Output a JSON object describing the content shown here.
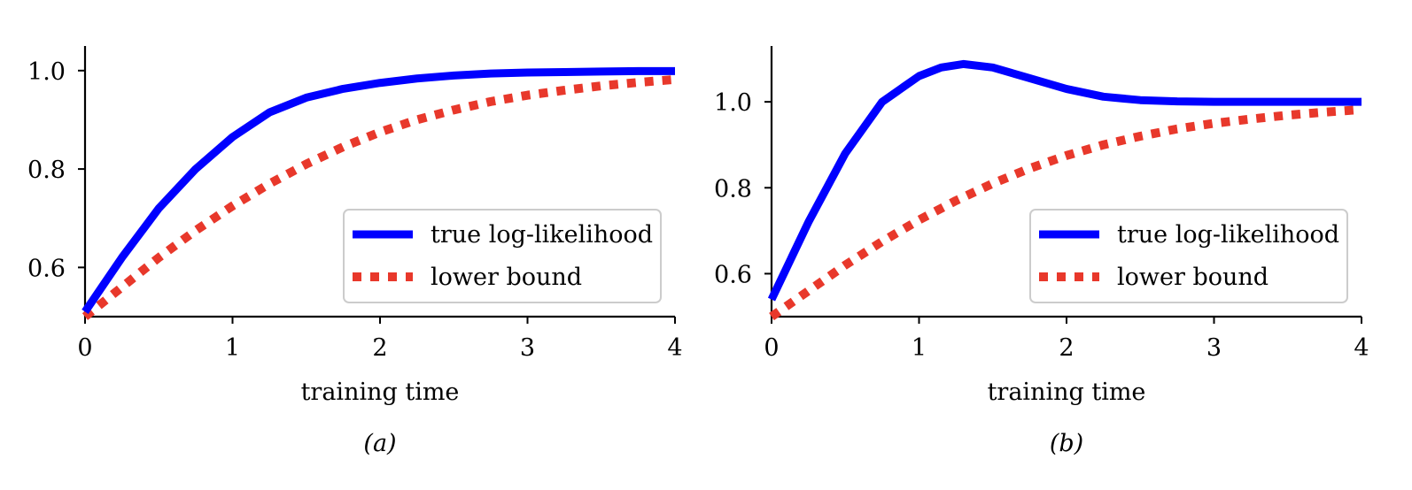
{
  "colors": {
    "true_line": "#0000ff",
    "lower_bound": "#e8382b",
    "axis": "#000000",
    "legend_border": "#cccccc"
  },
  "chart_data": [
    {
      "type": "line",
      "panel_label": "(a)",
      "xlabel": "training time",
      "ylabel": "",
      "xlim": [
        0,
        4
      ],
      "ylim": [
        0.5,
        1.05
      ],
      "xticks": [
        0,
        1,
        2,
        3,
        4
      ],
      "xtick_labels": [
        "0",
        "1",
        "2",
        "3",
        "4"
      ],
      "yticks": [
        0.6,
        0.8,
        1.0
      ],
      "ytick_labels": [
        "0.6",
        "0.8",
        "1.0"
      ],
      "legend_position": "lower-right",
      "grid": false,
      "series": [
        {
          "name": "true log-likelihood",
          "style": "solid",
          "color": "#0000ff",
          "x": [
            0,
            0.25,
            0.5,
            0.75,
            1.0,
            1.25,
            1.5,
            1.75,
            2.0,
            2.25,
            2.5,
            2.75,
            3.0,
            3.25,
            3.5,
            3.75,
            4.0
          ],
          "y": [
            0.51,
            0.62,
            0.72,
            0.8,
            0.865,
            0.915,
            0.945,
            0.963,
            0.975,
            0.984,
            0.99,
            0.994,
            0.996,
            0.997,
            0.998,
            0.999,
            0.999
          ]
        },
        {
          "name": "lower bound",
          "style": "dotted",
          "color": "#e8382b",
          "x": [
            0,
            0.25,
            0.5,
            0.75,
            1.0,
            1.25,
            1.5,
            1.75,
            2.0,
            2.25,
            2.5,
            2.75,
            3.0,
            3.25,
            3.5,
            3.75,
            4.0
          ],
          "y": [
            0.5,
            0.56,
            0.62,
            0.675,
            0.725,
            0.77,
            0.81,
            0.845,
            0.875,
            0.9,
            0.92,
            0.937,
            0.95,
            0.96,
            0.969,
            0.976,
            0.982
          ]
        }
      ]
    },
    {
      "type": "line",
      "panel_label": "(b)",
      "xlabel": "training time",
      "ylabel": "",
      "xlim": [
        0,
        4
      ],
      "ylim": [
        0.5,
        1.13
      ],
      "xticks": [
        0,
        1,
        2,
        3,
        4
      ],
      "xtick_labels": [
        "0",
        "1",
        "2",
        "3",
        "4"
      ],
      "yticks": [
        0.6,
        0.8,
        1.0
      ],
      "ytick_labels": [
        "0.6",
        "0.8",
        "1.0"
      ],
      "legend_position": "lower-right",
      "grid": false,
      "series": [
        {
          "name": "true log-likelihood",
          "style": "solid",
          "color": "#0000ff",
          "x": [
            0,
            0.25,
            0.5,
            0.75,
            1.0,
            1.15,
            1.3,
            1.5,
            1.75,
            2.0,
            2.25,
            2.5,
            2.75,
            3.0,
            3.25,
            3.5,
            3.75,
            4.0
          ],
          "y": [
            0.54,
            0.72,
            0.88,
            1.0,
            1.06,
            1.08,
            1.088,
            1.08,
            1.055,
            1.03,
            1.012,
            1.004,
            1.001,
            1.0,
            1.0,
            1.0,
            1.0,
            1.0
          ]
        },
        {
          "name": "lower bound",
          "style": "dotted",
          "color": "#e8382b",
          "x": [
            0,
            0.25,
            0.5,
            0.75,
            1.0,
            1.25,
            1.5,
            1.75,
            2.0,
            2.25,
            2.5,
            2.75,
            3.0,
            3.25,
            3.5,
            3.75,
            4.0
          ],
          "y": [
            0.5,
            0.56,
            0.62,
            0.675,
            0.725,
            0.77,
            0.81,
            0.845,
            0.875,
            0.9,
            0.92,
            0.937,
            0.95,
            0.96,
            0.969,
            0.976,
            0.982
          ]
        }
      ]
    }
  ]
}
